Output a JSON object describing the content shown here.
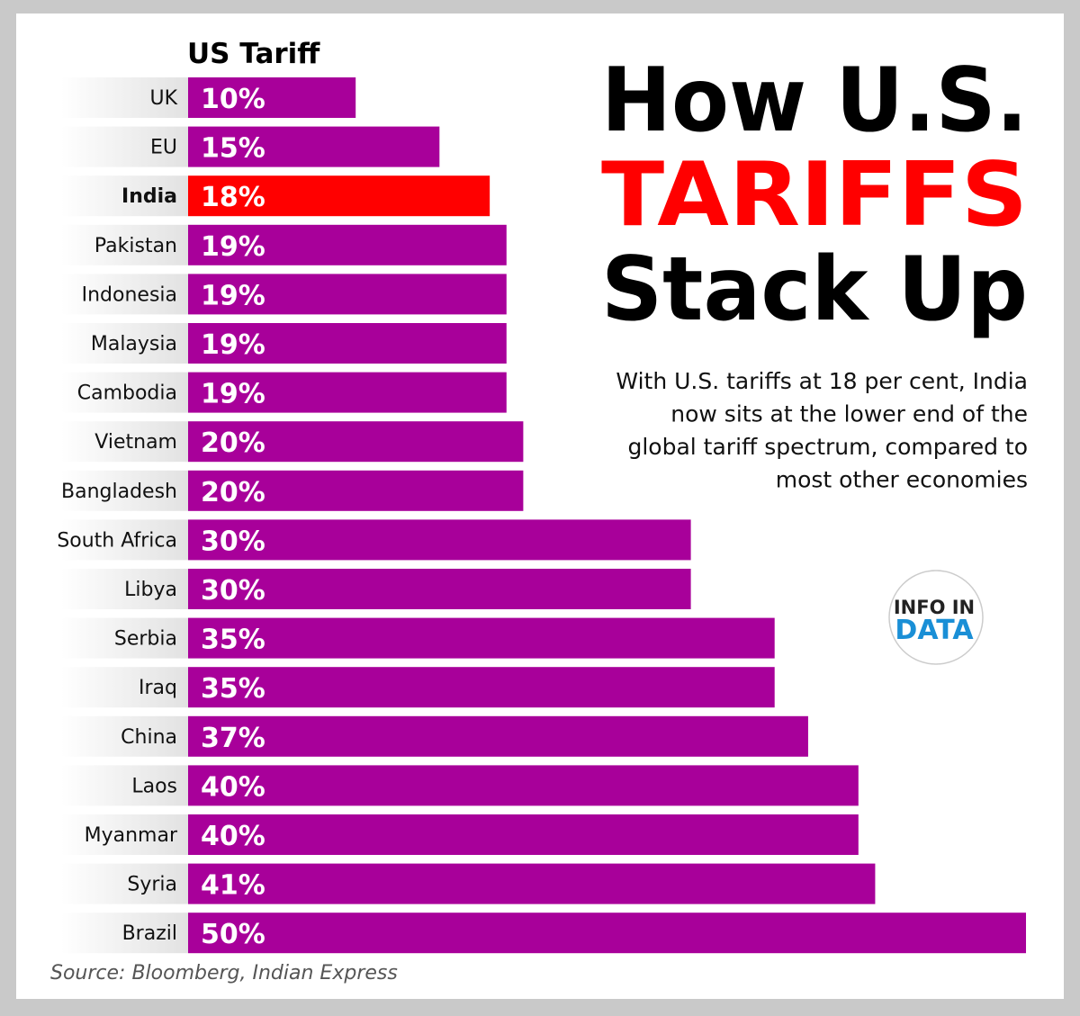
{
  "chart_data": {
    "type": "bar",
    "orientation": "horizontal",
    "axis_label": "US Tariff",
    "title_lines": [
      {
        "text": "How U.S.",
        "color": "#000000"
      },
      {
        "text": "TARIFFS",
        "color": "#ff0000"
      },
      {
        "text": "Stack Up",
        "color": "#000000"
      }
    ],
    "subtitle_lines": [
      "With U.S. tariffs at 18 per cent, India",
      "now sits at the lower end of the",
      "global tariff spectrum, compared to",
      "most other economies"
    ],
    "categories": [
      "UK",
      "EU",
      "India",
      "Pakistan",
      "Indonesia",
      "Malaysia",
      "Cambodia",
      "Vietnam",
      "Bangladesh",
      "South Africa",
      "Libya",
      "Serbia",
      "Iraq",
      "China",
      "Laos",
      "Myanmar",
      "Syria",
      "Brazil"
    ],
    "values": [
      10,
      15,
      18,
      19,
      19,
      19,
      19,
      20,
      20,
      30,
      30,
      35,
      35,
      37,
      40,
      40,
      41,
      50
    ],
    "value_labels": [
      "10%",
      "15%",
      "18%",
      "19%",
      "19%",
      "19%",
      "19%",
      "20%",
      "20%",
      "30%",
      "30%",
      "35%",
      "35%",
      "37%",
      "40%",
      "40%",
      "41%",
      "50%"
    ],
    "color": "#a8009a",
    "colors": [
      "#a8009a",
      "#a8009a",
      "#ff0000",
      "#a8009a",
      "#a8009a",
      "#a8009a",
      "#a8009a",
      "#a8009a",
      "#a8009a",
      "#a8009a",
      "#a8009a",
      "#a8009a",
      "#a8009a",
      "#a8009a",
      "#a8009a",
      "#a8009a",
      "#a8009a",
      "#a8009a"
    ],
    "xlim": [
      0,
      50
    ],
    "source": "Source: Bloomberg, Indian Express",
    "logo": [
      "INFO IN",
      "DATA"
    ]
  }
}
